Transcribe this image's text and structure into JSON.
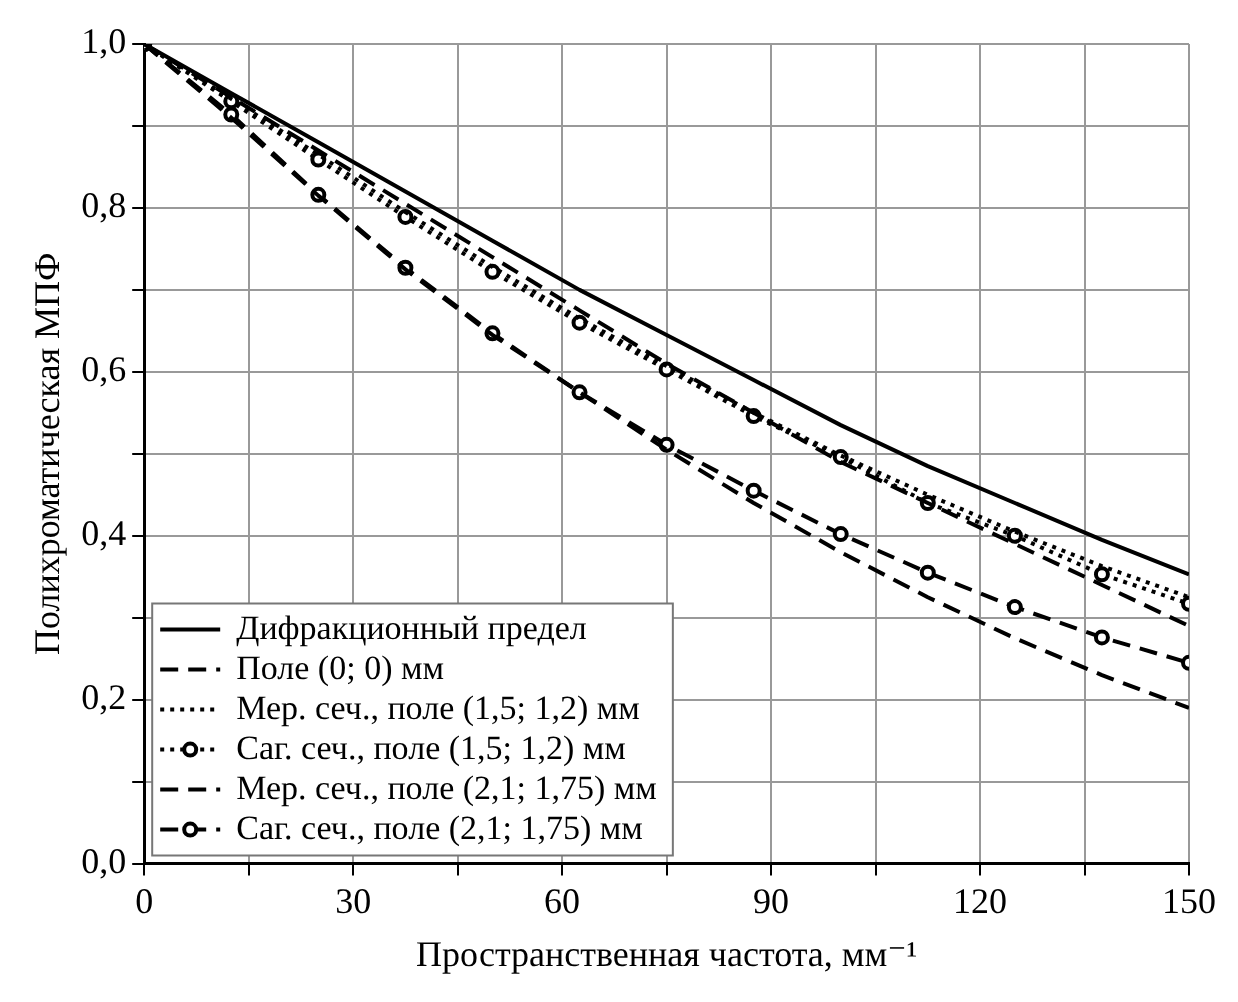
{
  "chart_data": {
    "type": "line",
    "xlabel": "Пространственная частота, мм⁻¹",
    "ylabel": "Полихроматическая МПФ",
    "x": [
      0,
      12.5,
      25,
      37.5,
      50,
      62.5,
      75,
      87.5,
      100,
      112.5,
      125,
      137.5,
      150
    ],
    "series": [
      {
        "name": "Дифракционный предел",
        "color": "#000000",
        "line_style": "solid",
        "marker": "none",
        "values": [
          1,
          0.94,
          0.88,
          0.82,
          0.76,
          0.7,
          0.645,
          0.59,
          0.535,
          0.485,
          0.44,
          0.395,
          0.353
        ]
      },
      {
        "name": "Поле (0; 0) мм",
        "color": "#000000",
        "line_style": "dashed",
        "marker": "none",
        "values": [
          1,
          0.935,
          0.87,
          0.805,
          0.74,
          0.675,
          0.61,
          0.55,
          0.49,
          0.44,
          0.39,
          0.34,
          0.29
        ]
      },
      {
        "name": "Мер. сеч., поле (1,5; 1,2) мм",
        "color": "#000000",
        "line_style": "dotted",
        "marker": "none",
        "values": [
          1,
          0.933,
          0.865,
          0.795,
          0.728,
          0.665,
          0.607,
          0.55,
          0.498,
          0.45,
          0.405,
          0.363,
          0.325
        ]
      },
      {
        "name": "Саг. сеч., поле (1,5; 1,2) мм",
        "color": "#000000",
        "line_style": "dotted",
        "marker": "circle",
        "values": [
          1,
          0.93,
          0.859,
          0.789,
          0.722,
          0.66,
          0.603,
          0.546,
          0.496,
          0.44,
          0.4,
          0.353,
          0.317
        ]
      },
      {
        "name": "Мер. сеч., поле (2,1; 1,75) мм",
        "color": "#000000",
        "line_style": "dashed",
        "marker": "none",
        "values": [
          1,
          0.91,
          0.815,
          0.725,
          0.645,
          0.575,
          0.505,
          0.44,
          0.38,
          0.325,
          0.275,
          0.23,
          0.19
        ]
      },
      {
        "name": "Саг. сеч., поле (2,1; 1,75) мм",
        "color": "#000000",
        "line_style": "dashed",
        "marker": "circle",
        "values": [
          1,
          0.914,
          0.816,
          0.727,
          0.647,
          0.575,
          0.511,
          0.455,
          0.402,
          0.355,
          0.313,
          0.276,
          0.245
        ]
      }
    ],
    "xlim": [
      0,
      150
    ],
    "ylim": [
      0,
      1
    ],
    "xticks": [
      0,
      {
        "value": 15,
        "label": null
      },
      30,
      {
        "value": 45,
        "label": null
      },
      60,
      {
        "value": 75,
        "label": null
      },
      90,
      {
        "value": 105,
        "label": null
      },
      120,
      {
        "value": 135,
        "label": null
      },
      150
    ],
    "yticks": [
      {
        "value": 0,
        "label": "0,0"
      },
      {
        "value": 0.1,
        "label": null
      },
      {
        "value": 0.2,
        "label": "0,2"
      },
      {
        "value": 0.3,
        "label": null
      },
      {
        "value": 0.4,
        "label": "0,4"
      },
      {
        "value": 0.5,
        "label": null
      },
      {
        "value": 0.6,
        "label": "0,6"
      },
      {
        "value": 0.7,
        "label": null
      },
      {
        "value": 0.8,
        "label": "0,8"
      },
      {
        "value": 0.9,
        "label": null
      },
      {
        "value": 1,
        "label": "1,0"
      }
    ],
    "grid": true,
    "legend": "bottom left"
  }
}
